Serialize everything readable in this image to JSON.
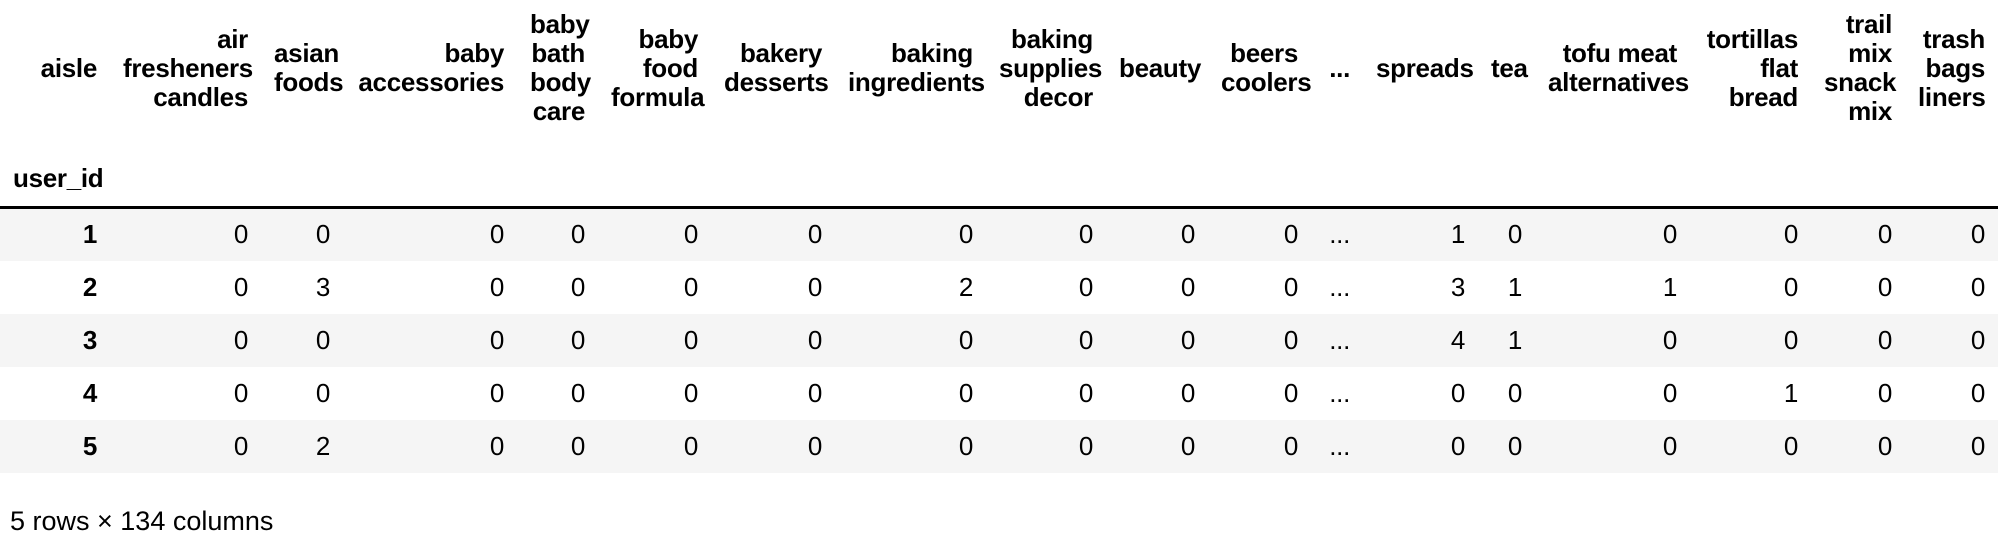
{
  "output": {
    "columns_axis_name": "aisle",
    "index_axis_name": "user_id",
    "columns": [
      "air\nfresheners\ncandles",
      "asian\nfoods",
      "baby\naccessories",
      "baby\nbath\nbody\ncare",
      "baby\nfood\nformula",
      "bakery\ndesserts",
      "baking\ningredients",
      "baking\nsupplies\ndecor",
      "beauty",
      "beers\ncoolers",
      "...",
      "spreads",
      "tea",
      "tofu meat\nalternatives",
      "tortillas\nflat\nbread",
      "trail\nmix\nsnack\nmix",
      "trash\nbags\nliners"
    ],
    "rows": [
      {
        "index": "1",
        "values": [
          "0",
          "0",
          "0",
          "0",
          "0",
          "0",
          "0",
          "0",
          "0",
          "0",
          "...",
          "1",
          "0",
          "0",
          "0",
          "0",
          "0"
        ]
      },
      {
        "index": "2",
        "values": [
          "0",
          "3",
          "0",
          "0",
          "0",
          "0",
          "2",
          "0",
          "0",
          "0",
          "...",
          "3",
          "1",
          "1",
          "0",
          "0",
          "0"
        ]
      },
      {
        "index": "3",
        "values": [
          "0",
          "0",
          "0",
          "0",
          "0",
          "0",
          "0",
          "0",
          "0",
          "0",
          "...",
          "4",
          "1",
          "0",
          "0",
          "0",
          "0"
        ]
      },
      {
        "index": "4",
        "values": [
          "0",
          "0",
          "0",
          "0",
          "0",
          "0",
          "0",
          "0",
          "0",
          "0",
          "...",
          "0",
          "0",
          "0",
          "1",
          "0",
          "0"
        ]
      },
      {
        "index": "5",
        "values": [
          "0",
          "2",
          "0",
          "0",
          "0",
          "0",
          "0",
          "0",
          "0",
          "0",
          "...",
          "0",
          "0",
          "0",
          "0",
          "0",
          "0"
        ]
      }
    ],
    "footer": "5 rows × 134 columns",
    "colors": {
      "stripe": "#f5f5f5",
      "header_rule": "#000000",
      "text": "#000000"
    }
  }
}
